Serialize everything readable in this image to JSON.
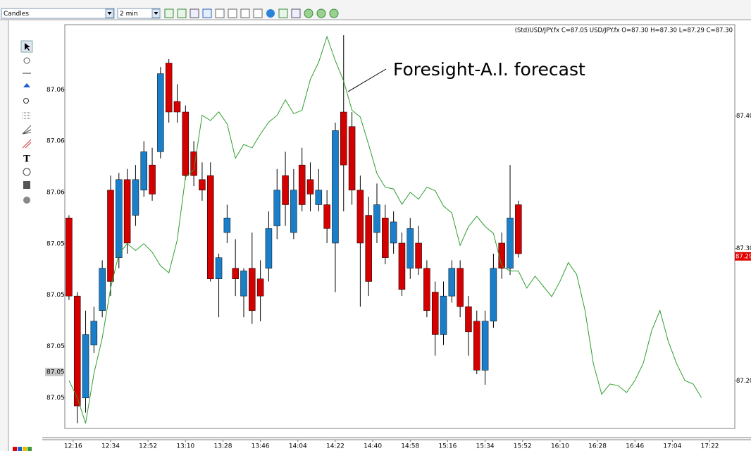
{
  "toolbar": {
    "chart_style": "Candles",
    "interval": "2 min"
  },
  "tools": {
    "text_tool": "T"
  },
  "chart_data": {
    "type": "candlestick",
    "legend_text": "(Std)USD/JPY.fx C=87.05   USD/JPY.fx O=87.30 H=87.30 L=87.29 C=87.30",
    "annotation": "Foresight-A.I. forecast",
    "xlim": [
      "12:12",
      "17:34"
    ],
    "xticks": [
      "12:16",
      "12:34",
      "12:52",
      "13:10",
      "13:28",
      "13:46",
      "14:04",
      "14:22",
      "14:40",
      "14:58",
      "15:16",
      "15:34",
      "15:52",
      "16:10",
      "16:28",
      "16:46",
      "17:04",
      "17:22"
    ],
    "ylim": [
      87.164,
      87.469
    ],
    "yticks": [
      {
        "value": 87.4,
        "label": "87.400"
      },
      {
        "value": 87.3,
        "label": "87.300"
      },
      {
        "value": 87.2,
        "label": "87.200"
      }
    ],
    "y2lim": [
      87.0437,
      87.0673
    ],
    "y2ticks": [
      {
        "value": 87.0635,
        "label": "87.06"
      },
      {
        "value": 87.0605,
        "label": "87.06"
      },
      {
        "value": 87.0575,
        "label": "87.06"
      },
      {
        "value": 87.0545,
        "label": "87.05"
      },
      {
        "value": 87.0515,
        "label": "87.05"
      },
      {
        "value": 87.0485,
        "label": "87.05"
      },
      {
        "value": 87.0455,
        "label": "87.05"
      }
    ],
    "y_marker": {
      "value": 87.294,
      "label": "87.29",
      "color": "#e00000"
    },
    "y2_marker": {
      "value": 87.047,
      "label": "87.05",
      "color": "#c8c8c8"
    },
    "series": [
      {
        "type": "candlestick",
        "up_color": "#1a7fc8",
        "down_color": "#d40000",
        "x": [
          "12:14",
          "12:18",
          "12:22",
          "12:26",
          "12:30",
          "12:34",
          "12:38",
          "12:42",
          "12:46",
          "12:50",
          "12:54",
          "12:58",
          "13:02",
          "13:06",
          "13:10",
          "13:14",
          "13:18",
          "13:22",
          "13:26",
          "13:30",
          "13:34",
          "13:38",
          "13:42",
          "13:46",
          "13:50",
          "13:54",
          "13:58",
          "14:02",
          "14:06",
          "14:10",
          "14:14",
          "14:18",
          "14:22",
          "14:26",
          "14:30",
          "14:34",
          "14:38",
          "14:42",
          "14:46",
          "14:50",
          "14:54",
          "14:58",
          "15:02",
          "15:06",
          "15:10",
          "15:14",
          "15:18",
          "15:22",
          "15:26",
          "15:30",
          "15:34",
          "15:38",
          "15:42",
          "15:46",
          "15:50"
        ],
        "open": [
          87.323,
          87.264,
          87.187,
          87.227,
          87.253,
          87.344,
          87.293,
          87.352,
          87.325,
          87.344,
          87.363,
          87.373,
          87.44,
          87.411,
          87.403,
          87.373,
          87.352,
          87.355,
          87.277,
          87.312,
          87.285,
          87.264,
          87.285,
          87.277,
          87.285,
          87.317,
          87.355,
          87.312,
          87.363,
          87.352,
          87.333,
          87.333,
          87.304,
          87.403,
          87.392,
          87.344,
          87.325,
          87.312,
          87.323,
          87.304,
          87.304,
          87.285,
          87.304,
          87.285,
          87.267,
          87.235,
          87.264,
          87.285,
          87.256,
          87.245,
          87.208,
          87.245,
          87.304,
          87.285,
          87.333
        ],
        "high": [
          87.325,
          87.267,
          87.253,
          87.256,
          87.291,
          87.355,
          87.357,
          87.36,
          87.363,
          87.381,
          87.376,
          87.437,
          87.443,
          87.424,
          87.408,
          87.381,
          87.365,
          87.365,
          87.296,
          87.333,
          87.307,
          87.285,
          87.312,
          87.291,
          87.328,
          87.36,
          87.373,
          87.36,
          87.376,
          87.365,
          87.36,
          87.344,
          87.395,
          87.461,
          87.403,
          87.355,
          87.339,
          87.349,
          87.333,
          87.328,
          87.312,
          87.323,
          87.317,
          87.291,
          87.275,
          87.275,
          87.291,
          87.291,
          87.264,
          87.253,
          87.253,
          87.296,
          87.312,
          87.363,
          87.336
        ],
        "low": [
          87.261,
          87.168,
          87.176,
          87.221,
          87.248,
          87.264,
          87.285,
          87.296,
          87.317,
          87.339,
          87.336,
          87.368,
          87.395,
          87.395,
          87.352,
          87.347,
          87.336,
          87.275,
          87.248,
          87.304,
          87.264,
          87.248,
          87.243,
          87.245,
          87.275,
          87.307,
          87.317,
          87.307,
          87.328,
          87.328,
          87.328,
          87.304,
          87.267,
          87.328,
          87.333,
          87.256,
          87.264,
          87.304,
          87.288,
          87.296,
          87.264,
          87.277,
          87.28,
          87.248,
          87.219,
          87.227,
          87.259,
          87.248,
          87.219,
          87.205,
          87.197,
          87.24,
          87.277,
          87.28,
          87.293
        ],
        "close": [
          87.264,
          87.181,
          87.235,
          87.245,
          87.285,
          87.275,
          87.352,
          87.304,
          87.352,
          87.373,
          87.341,
          87.432,
          87.403,
          87.403,
          87.355,
          87.355,
          87.344,
          87.277,
          87.293,
          87.323,
          87.277,
          87.283,
          87.253,
          87.264,
          87.315,
          87.344,
          87.333,
          87.344,
          87.333,
          87.341,
          87.344,
          87.315,
          87.389,
          87.363,
          87.344,
          87.304,
          87.275,
          87.333,
          87.293,
          87.32,
          87.269,
          87.315,
          87.285,
          87.253,
          87.235,
          87.264,
          87.285,
          87.256,
          87.237,
          87.208,
          87.245,
          87.285,
          87.285,
          87.323,
          87.296
        ]
      },
      {
        "type": "line",
        "axis": "y2",
        "color": "#2f9e2f",
        "x": [
          "12:14",
          "12:18",
          "12:22",
          "12:26",
          "12:30",
          "12:34",
          "12:38",
          "12:42",
          "12:46",
          "12:50",
          "12:54",
          "12:58",
          "13:02",
          "13:06",
          "13:10",
          "13:14",
          "13:18",
          "13:22",
          "13:26",
          "13:30",
          "13:34",
          "13:38",
          "13:42",
          "13:46",
          "13:50",
          "13:54",
          "13:58",
          "14:02",
          "14:06",
          "14:10",
          "14:14",
          "14:18",
          "14:22",
          "14:26",
          "14:30",
          "14:34",
          "14:38",
          "14:42",
          "14:46",
          "14:50",
          "14:54",
          "14:58",
          "15:02",
          "15:06",
          "15:10",
          "15:14",
          "15:18",
          "15:22",
          "15:26",
          "15:30",
          "15:34",
          "15:38",
          "15:42",
          "15:46",
          "15:50",
          "15:54",
          "15:58",
          "16:02",
          "16:06",
          "16:10",
          "16:14",
          "16:18",
          "16:22",
          "16:26",
          "16:30",
          "16:34",
          "16:38",
          "16:42",
          "16:46",
          "16:50",
          "16:54",
          "16:58",
          "17:02",
          "17:06",
          "17:10",
          "17:14",
          "17:18"
        ],
        "values": [
          87.0465,
          87.0455,
          87.044,
          87.0469,
          87.049,
          87.0519,
          87.0539,
          87.0545,
          87.0541,
          87.0545,
          87.054,
          87.0532,
          87.0528,
          87.0547,
          87.0584,
          87.0588,
          87.062,
          87.0617,
          87.0622,
          87.0615,
          87.0595,
          87.0603,
          87.0601,
          87.0609,
          87.0616,
          87.062,
          87.0629,
          87.0621,
          87.0623,
          87.0641,
          87.0651,
          87.0666,
          87.0652,
          87.064,
          87.0623,
          87.0619,
          87.0603,
          87.0586,
          87.0578,
          87.0577,
          87.0568,
          87.0575,
          87.0571,
          87.0578,
          87.0576,
          87.0567,
          87.0563,
          87.0544,
          87.0555,
          87.0561,
          87.0555,
          87.0551,
          87.0532,
          87.0529,
          87.0529,
          87.0519,
          87.0526,
          87.052,
          87.0514,
          87.0523,
          87.0534,
          87.0527,
          87.0506,
          87.0475,
          87.0457,
          87.0463,
          87.0462,
          87.0458,
          87.0465,
          87.0475,
          87.0494,
          87.0506,
          87.0488,
          87.0475,
          87.0465,
          87.0463,
          87.0455
        ]
      }
    ]
  }
}
